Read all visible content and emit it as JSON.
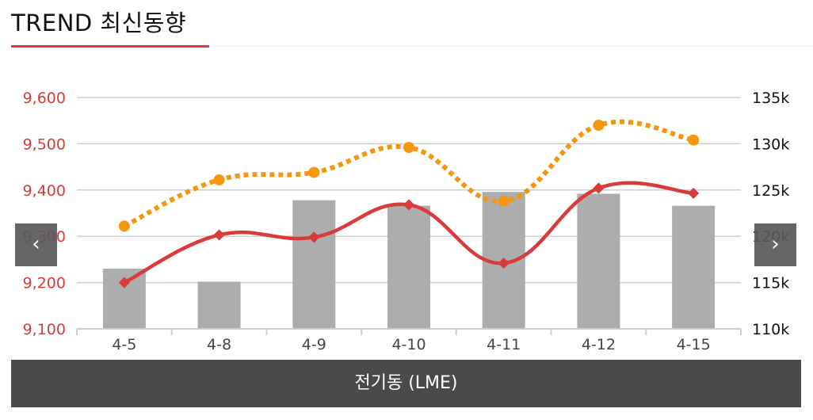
{
  "header": {
    "title": "TREND 최신동향"
  },
  "footer": {
    "label": "전기동 (LME)"
  },
  "nav": {
    "prev_glyph": "‹",
    "next_glyph": "›"
  },
  "colors": {
    "accent": "#d93a3a",
    "orange": "#f6960e",
    "bar": "#adadad",
    "footer_bg": "#4a4a4a"
  },
  "chart_data": {
    "type": "bar",
    "categories": [
      "4-5",
      "4-8",
      "4-9",
      "4-10",
      "4-11",
      "4-12",
      "4-15"
    ],
    "grid": true,
    "left_axis": {
      "range": [
        9100,
        9600
      ],
      "ticks": [
        "9,100",
        "9,200",
        "9,300",
        "9,400",
        "9,500",
        "9,600"
      ],
      "color": "#d93a3a"
    },
    "right_axis": {
      "range": [
        110,
        135
      ],
      "ticks": [
        "110k",
        "115k",
        "120k",
        "125k",
        "130k",
        "135k"
      ]
    },
    "series": [
      {
        "type": "bar",
        "axis": "right",
        "values": [
          116.5,
          115.1,
          123.9,
          123.3,
          124.8,
          124.6,
          123.3
        ]
      },
      {
        "type": "line",
        "axis": "left",
        "values": [
          9200,
          9303,
          9298,
          9368,
          9242,
          9404,
          9393
        ]
      },
      {
        "type": "line-dotted",
        "axis": "right",
        "values": [
          121.1,
          126.1,
          126.9,
          129.6,
          123.8,
          132.0,
          130.4
        ]
      }
    ]
  }
}
